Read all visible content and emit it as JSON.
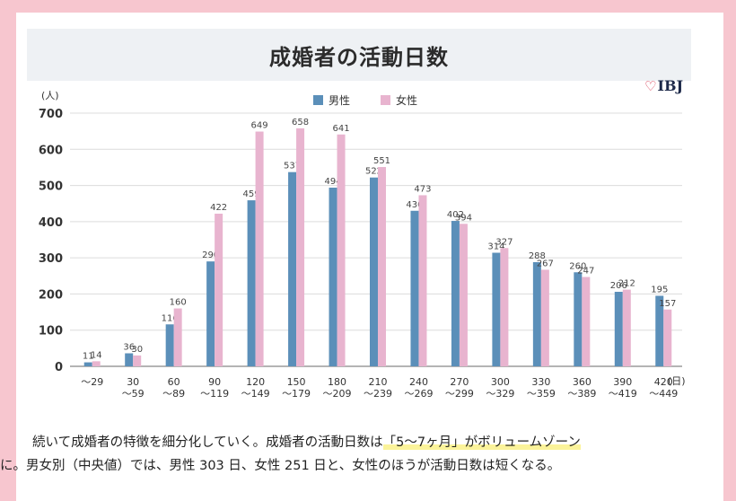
{
  "chart_data": {
    "type": "bar",
    "title": "成婚者の活動日数",
    "y_unit_label": "(人)",
    "x_unit_label": "(日)",
    "ylim": [
      0,
      700
    ],
    "yticks": [
      0,
      100,
      200,
      300,
      400,
      500,
      600,
      700
    ],
    "grid": true,
    "legend_position": "top-center",
    "categories": [
      [
        "〜29"
      ],
      [
        "30",
        "〜59"
      ],
      [
        "60",
        "〜89"
      ],
      [
        "90",
        "〜119"
      ],
      [
        "120",
        "〜149"
      ],
      [
        "150",
        "〜179"
      ],
      [
        "180",
        "〜209"
      ],
      [
        "210",
        "〜239"
      ],
      [
        "240",
        "〜269"
      ],
      [
        "270",
        "〜299"
      ],
      [
        "300",
        "〜329"
      ],
      [
        "330",
        "〜359"
      ],
      [
        "360",
        "〜389"
      ],
      [
        "390",
        "〜419"
      ],
      [
        "420",
        "〜449"
      ]
    ],
    "series": [
      {
        "name": "男性",
        "color": "#5b8fb9",
        "values": [
          11,
          36,
          116,
          290,
          459,
          537,
          494,
          522,
          430,
          402,
          314,
          288,
          260,
          206,
          195
        ]
      },
      {
        "name": "女性",
        "color": "#e8b4cf",
        "values": [
          14,
          30,
          160,
          422,
          649,
          658,
          641,
          551,
          473,
          394,
          327,
          267,
          247,
          212,
          157
        ]
      }
    ]
  },
  "logo": {
    "text": "IBJ",
    "icon": "heart-icon"
  },
  "paragraph": {
    "line1_before": "続いて成婚者の特徴を細分化していく。成婚者の活動日数は",
    "line1_highlight": "「5〜7ヶ月」がボリュームゾーン",
    "line2": "に。男女別（中央値）では、男性 303 日、女性 251 日と、女性のほうが活動日数は短くなる。"
  }
}
